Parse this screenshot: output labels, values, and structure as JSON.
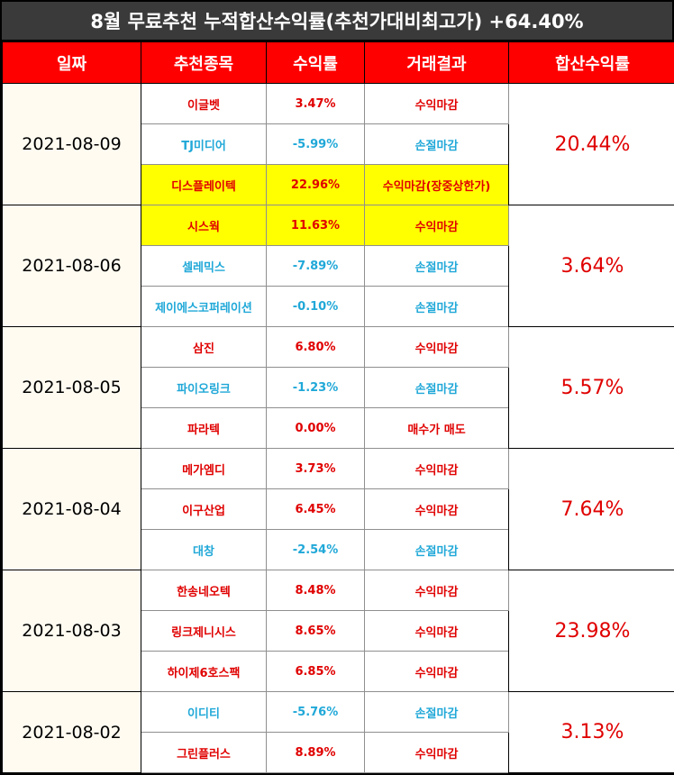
{
  "title": "8월 무료추천 누적합산수익률(추천가대비최고가) +64.40%",
  "headers": [
    "일짜",
    "추천종목",
    "수익률",
    "거래결과",
    "합산수익률"
  ],
  "groups": [
    {
      "date": "2021-08-09",
      "total": "20.44%",
      "rows": [
        {
          "name": "이글벳",
          "rate": "3.47%",
          "result": "수익마감",
          "type": "profit",
          "highlight": false
        },
        {
          "name": "TJ미디어",
          "rate": "-5.99%",
          "result": "손절마감",
          "type": "loss",
          "highlight": false
        },
        {
          "name": "디스플레이텍",
          "rate": "22.96%",
          "result": "수익마감(장중상한가)",
          "type": "profit",
          "highlight": true
        }
      ]
    },
    {
      "date": "2021-08-06",
      "total": "3.64%",
      "rows": [
        {
          "name": "시스웍",
          "rate": "11.63%",
          "result": "수익마감",
          "type": "profit",
          "highlight": true
        },
        {
          "name": "셀레믹스",
          "rate": "-7.89%",
          "result": "손절마감",
          "type": "loss",
          "highlight": false
        },
        {
          "name": "제이에스코퍼레이션",
          "rate": "-0.10%",
          "result": "손절마감",
          "type": "loss",
          "highlight": false
        }
      ]
    },
    {
      "date": "2021-08-05",
      "total": "5.57%",
      "rows": [
        {
          "name": "삼진",
          "rate": "6.80%",
          "result": "수익마감",
          "type": "profit",
          "highlight": false
        },
        {
          "name": "파이오링크",
          "rate": "-1.23%",
          "result": "손절마감",
          "type": "loss",
          "highlight": false
        },
        {
          "name": "파라텍",
          "rate": "0.00%",
          "result": "매수가 매도",
          "type": "profit",
          "highlight": false
        }
      ]
    },
    {
      "date": "2021-08-04",
      "total": "7.64%",
      "rows": [
        {
          "name": "메가엠디",
          "rate": "3.73%",
          "result": "수익마감",
          "type": "profit",
          "highlight": false
        },
        {
          "name": "이구산업",
          "rate": "6.45%",
          "result": "수익마감",
          "type": "profit",
          "highlight": false
        },
        {
          "name": "대창",
          "rate": "-2.54%",
          "result": "손절마감",
          "type": "loss",
          "highlight": false
        }
      ]
    },
    {
      "date": "2021-08-03",
      "total": "23.98%",
      "rows": [
        {
          "name": "한송네오텍",
          "rate": "8.48%",
          "result": "수익마감",
          "type": "profit",
          "highlight": false
        },
        {
          "name": "링크제니시스",
          "rate": "8.65%",
          "result": "수익마감",
          "type": "profit",
          "highlight": false
        },
        {
          "name": "하이제6호스팩",
          "rate": "6.85%",
          "result": "수익마감",
          "type": "profit",
          "highlight": false
        }
      ]
    },
    {
      "date": "2021-08-02",
      "total": "3.13%",
      "rows": [
        {
          "name": "이디티",
          "rate": "-5.76%",
          "result": "손절마감",
          "type": "loss",
          "highlight": false
        },
        {
          "name": "그린플러스",
          "rate": "8.89%",
          "result": "수익마감",
          "type": "profit",
          "highlight": false
        }
      ]
    }
  ],
  "colors": {
    "profit": "#e00000",
    "loss": "#20a8d8",
    "header": "#ff0000",
    "highlight": "#ffff00"
  }
}
